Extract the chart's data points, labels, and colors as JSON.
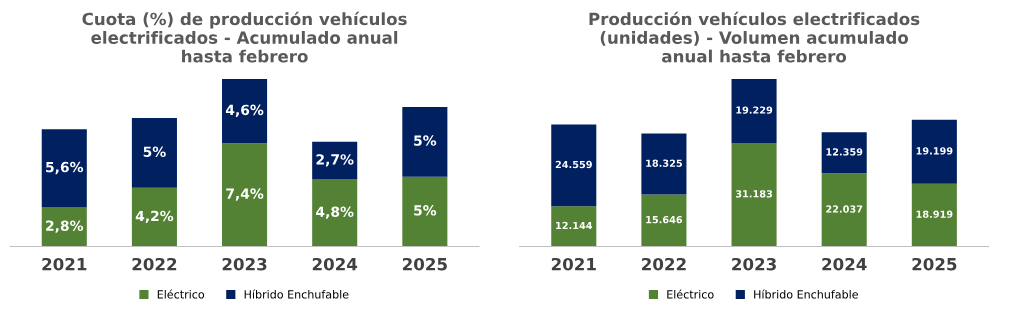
{
  "chart_data": [
    {
      "type": "bar",
      "title": "Cuota (%) de producción vehículos electrificados - Acumulado anual hasta febrero",
      "categories": [
        "2021",
        "2022",
        "2023",
        "2024",
        "2025"
      ],
      "stacked": true,
      "legend": "bottom",
      "tick_labels": "x",
      "series": [
        {
          "name": "Eléctrico",
          "color": "#548235",
          "values": [
            2.8,
            4.2,
            7.4,
            4.8,
            5
          ],
          "value_labels": [
            "2,8%",
            "4,2%",
            "7,4%",
            "4,8%",
            "5%"
          ]
        },
        {
          "name": "Híbrido Enchufable",
          "color": "#002060",
          "values": [
            5.6,
            5,
            4.6,
            2.7,
            5
          ],
          "value_labels": [
            "5,6%",
            "5%",
            "4,6%",
            "2,7%",
            "5%"
          ]
        }
      ]
    },
    {
      "type": "bar",
      "title": "Producción vehículos electrificados (unidades) - Volumen acumulado anual hasta febrero",
      "categories": [
        "2021",
        "2022",
        "2023",
        "2024",
        "2025"
      ],
      "stacked": true,
      "legend": "bottom",
      "tick_labels": "x",
      "series": [
        {
          "name": "Eléctrico",
          "color": "#548235",
          "values": [
            12144,
            15646,
            31183,
            22037,
            18919
          ],
          "value_labels": [
            "12.144",
            "15.646",
            "31.183",
            "22.037",
            "18.919"
          ]
        },
        {
          "name": "Híbrido Enchufable",
          "color": "#002060",
          "values": [
            24559,
            18325,
            19229,
            12359,
            19199
          ],
          "value_labels": [
            "24.559",
            "18.325",
            "19.229",
            "12.359",
            "19.199"
          ]
        }
      ]
    }
  ]
}
